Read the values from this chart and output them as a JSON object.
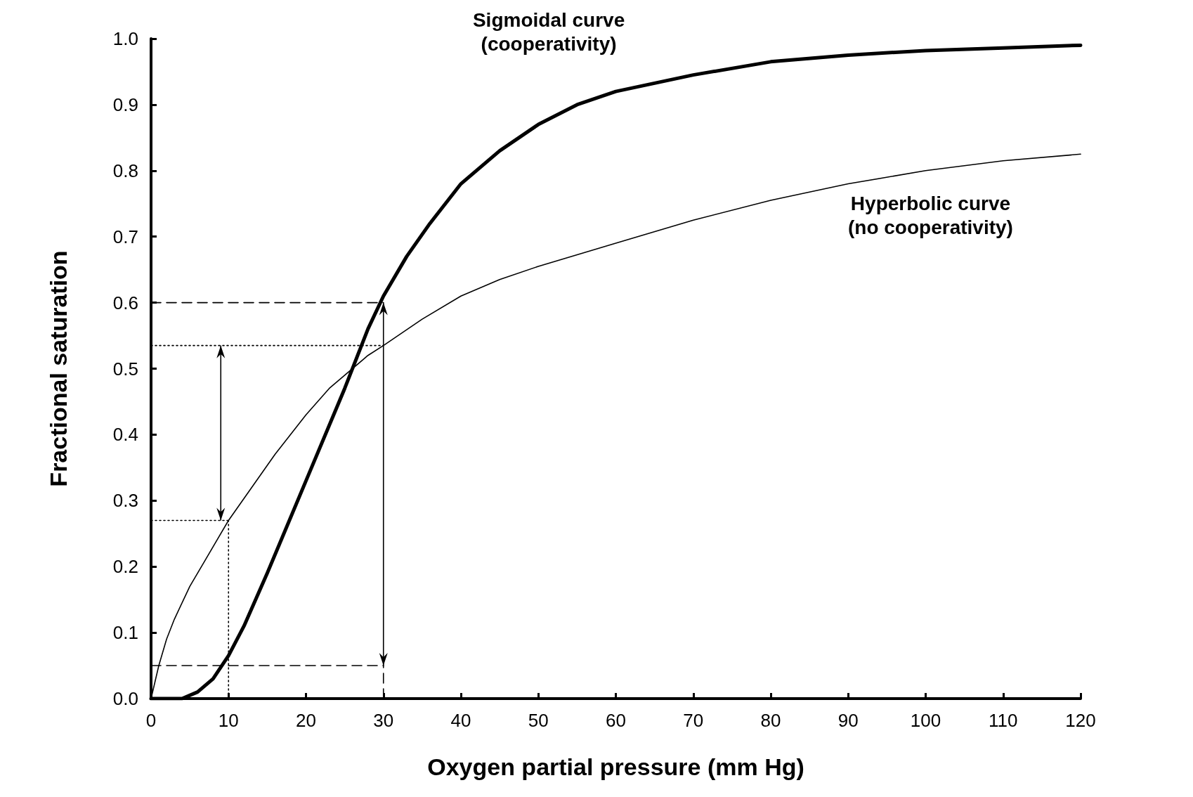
{
  "chart_data": {
    "type": "line",
    "xlabel": "Oxygen partial pressure (mm Hg)",
    "ylabel": "Fractional saturation",
    "xlim": [
      0,
      120
    ],
    "xticks": [
      0,
      10,
      20,
      30,
      40,
      50,
      60,
      70,
      80,
      90,
      100,
      110,
      120
    ],
    "ylim": [
      0,
      1
    ],
    "yticks": [
      {
        "value": 0,
        "label": "0.0"
      },
      {
        "value": 0.1,
        "label": "0.1"
      },
      {
        "value": 0.2,
        "label": "0.2"
      },
      {
        "value": 0.3,
        "label": "0.3"
      },
      {
        "value": 0.4,
        "label": "0.4"
      },
      {
        "value": 0.5,
        "label": "0.5"
      },
      {
        "value": 0.6,
        "label": "0.6"
      },
      {
        "value": 0.7,
        "label": "0.7"
      },
      {
        "value": 0.8,
        "label": "0.8"
      },
      {
        "value": 0.9,
        "label": "0.9"
      },
      {
        "value": 1,
        "label": "1.0"
      }
    ],
    "marker": "none",
    "annotations": [
      "Sigmoidal curve\n(cooperativity)",
      "Hyperbolic curve\n(no cooperativity)"
    ],
    "series": [
      {
        "color": "#000000",
        "x": [
          0,
          4,
          6,
          8,
          10,
          12,
          15,
          20,
          25,
          28,
          30,
          33,
          36,
          40,
          45,
          50,
          55,
          60,
          70,
          80,
          90,
          100,
          110,
          120
        ],
        "values": [
          0,
          0,
          0.01,
          0.03,
          0.065,
          0.11,
          0.19,
          0.33,
          0.47,
          0.56,
          0.61,
          0.67,
          0.72,
          0.78,
          0.83,
          0.87,
          0.9,
          0.92,
          0.945,
          0.965,
          0.975,
          0.982,
          0.986,
          0.99
        ]
      },
      {
        "color": "#000000",
        "x": [
          0,
          1,
          2,
          3,
          5,
          7,
          10,
          13,
          16,
          20,
          23,
          25,
          28,
          30,
          35,
          40,
          45,
          50,
          60,
          70,
          80,
          90,
          100,
          110,
          120
        ],
        "values": [
          0,
          0.05,
          0.09,
          0.12,
          0.17,
          0.21,
          0.27,
          0.32,
          0.37,
          0.43,
          0.47,
          0.49,
          0.52,
          0.535,
          0.575,
          0.61,
          0.635,
          0.655,
          0.69,
          0.725,
          0.755,
          0.78,
          0.8,
          0.815,
          0.825
        ]
      },
      {
        "color": "#000000",
        "line_style": "dashed",
        "x": [
          0,
          30
        ],
        "values": [
          0.6,
          0.6
        ]
      },
      {
        "color": "#000000",
        "line_style": "dashed",
        "x": [
          0,
          30
        ],
        "values": [
          0.05,
          0.05
        ]
      },
      {
        "color": "#000000",
        "line_style": "dashed",
        "x": [
          30,
          30
        ],
        "values": [
          0,
          0.05
        ]
      },
      {
        "color": "#000000",
        "line_style": "dotted",
        "x": [
          0,
          30
        ],
        "values": [
          0.535,
          0.535
        ]
      },
      {
        "color": "#000000",
        "line_style": "dotted",
        "x": [
          0,
          10
        ],
        "values": [
          0.27,
          0.27
        ]
      },
      {
        "color": "#000000",
        "line_style": "dotted",
        "x": [
          10,
          10
        ],
        "values": [
          0,
          0.27
        ]
      }
    ]
  }
}
